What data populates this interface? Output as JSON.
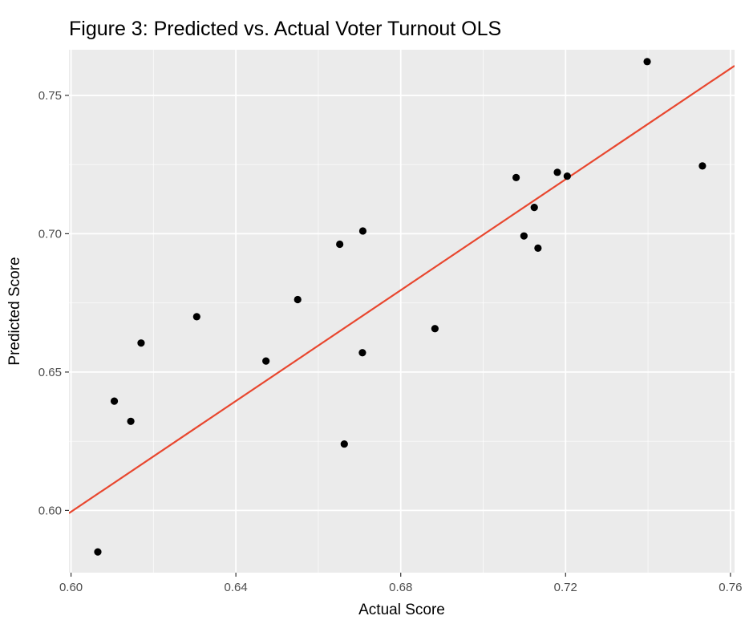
{
  "chart_data": {
    "type": "scatter",
    "title": "Figure 3: Predicted vs. Actual Voter Turnout OLS",
    "xlabel": "Actual Score",
    "ylabel": "Predicted Score",
    "xlim": [
      0.5995,
      0.761
    ],
    "ylim": [
      0.5775,
      0.7665
    ],
    "x_ticks": [
      0.6,
      0.64,
      0.68,
      0.72,
      0.76
    ],
    "x_tick_labels": [
      "0.60",
      "0.64",
      "0.68",
      "0.72",
      "0.76"
    ],
    "y_ticks": [
      0.6,
      0.65,
      0.7,
      0.75
    ],
    "y_tick_labels": [
      "0.60",
      "0.65",
      "0.70",
      "0.75"
    ],
    "grid": true,
    "points": [
      {
        "x": 0.6065,
        "y": 0.585
      },
      {
        "x": 0.6105,
        "y": 0.6395
      },
      {
        "x": 0.6145,
        "y": 0.6322
      },
      {
        "x": 0.617,
        "y": 0.6605
      },
      {
        "x": 0.6305,
        "y": 0.67
      },
      {
        "x": 0.6473,
        "y": 0.654
      },
      {
        "x": 0.655,
        "y": 0.6762
      },
      {
        "x": 0.6652,
        "y": 0.6962
      },
      {
        "x": 0.6663,
        "y": 0.624
      },
      {
        "x": 0.6707,
        "y": 0.657
      },
      {
        "x": 0.6708,
        "y": 0.701
      },
      {
        "x": 0.6883,
        "y": 0.6657
      },
      {
        "x": 0.708,
        "y": 0.7203
      },
      {
        "x": 0.7099,
        "y": 0.6992
      },
      {
        "x": 0.7124,
        "y": 0.7095
      },
      {
        "x": 0.7133,
        "y": 0.6948
      },
      {
        "x": 0.718,
        "y": 0.7222
      },
      {
        "x": 0.7204,
        "y": 0.7208
      },
      {
        "x": 0.7398,
        "y": 0.7622
      },
      {
        "x": 0.7532,
        "y": 0.7245
      }
    ],
    "fit_line": {
      "x": [
        0.5995,
        0.761
      ],
      "y": [
        0.599,
        0.7607
      ]
    },
    "colors": {
      "panel": "#ebebeb",
      "grid_major": "#ffffff",
      "point": "#000000",
      "fit_line": "#e8472f",
      "tick_label": "#4d4d4d",
      "tick_mark": "#333333"
    }
  }
}
